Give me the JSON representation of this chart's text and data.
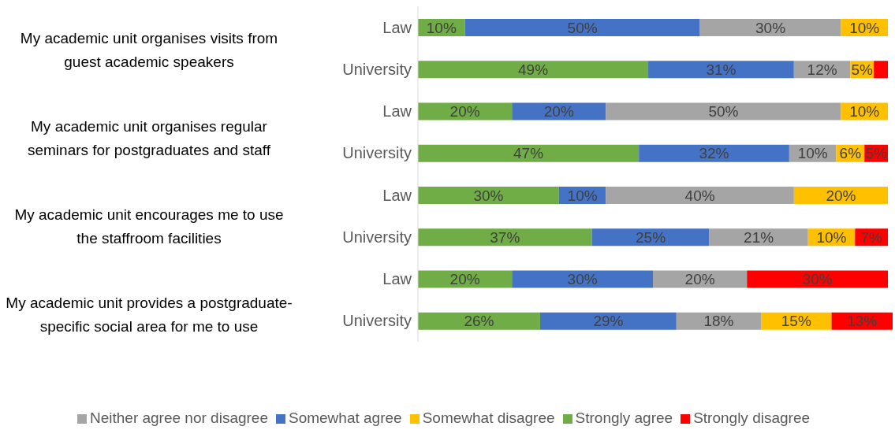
{
  "chart_data": {
    "type": "bar",
    "orientation": "horizontal",
    "stacked": true,
    "categories": [
      "Law",
      "University",
      "Law",
      "University",
      "Law",
      "University",
      "Law",
      "University"
    ],
    "annotations": [
      "My academic unit organises visits from guest academic speakers",
      "My academic unit organises regular seminars for postgraduates and staff",
      "My academic unit encourages me to use the staffroom facilities",
      "My academic unit provides a postgraduate-specific social area for me to use"
    ],
    "series": [
      {
        "name": "Strongly agree",
        "color": "#70ad47",
        "values": [
          10,
          49,
          20,
          47,
          30,
          37,
          20,
          26
        ],
        "value_labels": [
          "10%",
          "49%",
          "20%",
          "47%",
          "30%",
          "37%",
          "20%",
          "26%"
        ]
      },
      {
        "name": "Somewhat agree",
        "color": "#4472c4",
        "values": [
          50,
          31,
          20,
          32,
          10,
          25,
          30,
          29
        ],
        "value_labels": [
          "50%",
          "31%",
          "20%",
          "32%",
          "10%",
          "25%",
          "30%",
          "29%"
        ]
      },
      {
        "name": "Neither agree nor disagree",
        "color": "#a5a5a5",
        "values": [
          30,
          12,
          50,
          10,
          40,
          21,
          20,
          18
        ],
        "value_labels": [
          "30%",
          "12%",
          "50%",
          "10%",
          "40%",
          "21%",
          "20%",
          "18%"
        ]
      },
      {
        "name": "Somewhat disagree",
        "color": "#ffc000",
        "values": [
          10,
          5,
          10,
          6,
          20,
          10,
          null,
          15
        ],
        "value_labels": [
          "10%",
          "5%",
          "10%",
          "6%",
          "20%",
          "10%",
          null,
          "15%"
        ]
      },
      {
        "name": "Strongly disagree",
        "color": "#ff0000",
        "values": [
          null,
          3,
          null,
          5,
          null,
          7,
          30,
          13
        ],
        "value_labels": [
          null,
          null,
          null,
          "5%",
          null,
          "7%",
          "30%",
          "13%"
        ]
      }
    ],
    "xlim": [
      0,
      101
    ],
    "legend": "bottom",
    "tick_labels": "y"
  }
}
